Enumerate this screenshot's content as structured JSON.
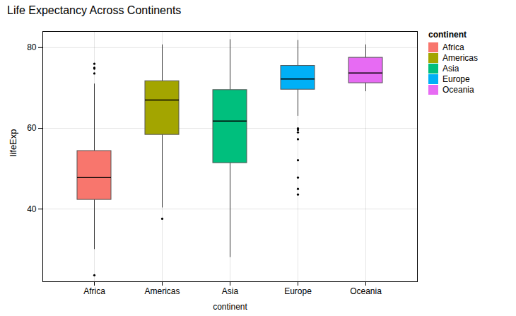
{
  "chart_data": {
    "type": "box",
    "title": "Life Expectancy Across Continents",
    "xlabel": "continent",
    "ylabel": "lifeExp",
    "legend_title": "continent",
    "categories": [
      "Africa",
      "Americas",
      "Asia",
      "Europe",
      "Oceania"
    ],
    "series": [
      {
        "name": "Africa",
        "color": "#F8766D",
        "q1": 42.3,
        "median": 47.8,
        "q3": 54.4,
        "whislo": 30.0,
        "whishi": 71.0,
        "fliers": [
          23.6,
          73.6,
          74.8,
          75.0,
          76.0
        ]
      },
      {
        "name": "Americas",
        "color": "#A3A500",
        "q1": 58.4,
        "median": 67.0,
        "q3": 71.7,
        "whislo": 40.3,
        "whishi": 80.7,
        "fliers": [
          37.6
        ]
      },
      {
        "name": "Asia",
        "color": "#00BF7D",
        "q1": 51.4,
        "median": 61.8,
        "q3": 69.5,
        "whislo": 28.0,
        "whishi": 82.0,
        "fliers": []
      },
      {
        "name": "Europe",
        "color": "#00B0F6",
        "q1": 69.6,
        "median": 72.2,
        "q3": 75.5,
        "whislo": 63.0,
        "whishi": 81.8,
        "fliers": [
          43.6,
          45.0,
          47.8,
          52.1,
          57.3,
          59.0,
          59.6,
          60.0
        ]
      },
      {
        "name": "Oceania",
        "color": "#E76BF3",
        "q1": 71.2,
        "median": 73.7,
        "q3": 77.5,
        "whislo": 69.1,
        "whishi": 80.7,
        "fliers": []
      }
    ],
    "ylim": [
      22,
      84
    ],
    "yticks": [
      40,
      60,
      80
    ],
    "grid": true,
    "legend": "right"
  }
}
